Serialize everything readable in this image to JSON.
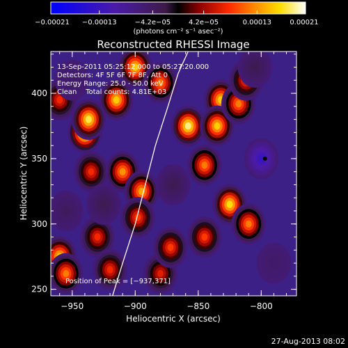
{
  "chart_data": {
    "type": "heatmap",
    "title": "Reconstructed RHESSI Image",
    "xlabel": "Heliocentric X (arcsec)",
    "ylabel": "Heliocentric Y (arcsec)",
    "xlim": [
      -967,
      -772
    ],
    "ylim": [
      245,
      432
    ],
    "x_ticks": [
      -950,
      -900,
      -850,
      -800
    ],
    "x_tick_labels": [
      "−950",
      "−900",
      "−850",
      "−800"
    ],
    "y_ticks": [
      250,
      300,
      350,
      400
    ],
    "y_tick_labels": [
      "250",
      "300",
      "350",
      "400"
    ],
    "colorbar": {
      "min": -0.00021,
      "max": 0.00021,
      "ticks": [
        -0.00021,
        -0.00013,
        -4.2e-05,
        4.2e-05,
        0.00013,
        0.00021
      ],
      "tick_labels": [
        "−0.00021",
        "−0.00013",
        "−4.2e−05",
        "4.2e−05",
        "0.00013",
        "0.00021"
      ],
      "units_label": "(photons cm⁻² s⁻¹ asec⁻²)"
    },
    "annotations": [
      "13-Sep-2011 05:25:12.000 to 05:27:20.000",
      "Detectors: 4F 5F 6F 7F 8F, Att 0",
      "Energy Range: 25.0 - 50.0 keV",
      "Clean    Total counts: 4.81E+03"
    ],
    "peak_label": "Position of Peak = [−937,371]",
    "marker": {
      "x": -797,
      "y": 350
    },
    "limb_curve": [
      [
        -918,
        245
      ],
      [
        -910,
        270
      ],
      [
        -900,
        300
      ],
      [
        -892,
        330
      ],
      [
        -884,
        360
      ],
      [
        -874,
        390
      ],
      [
        -866,
        415
      ],
      [
        -858,
        432
      ]
    ],
    "peaks": [
      {
        "x": -940,
        "y": 370,
        "value": 0.00021
      },
      {
        "x": -937,
        "y": 380,
        "value": 0.00018
      },
      {
        "x": -915,
        "y": 395,
        "value": 0.00016
      },
      {
        "x": -900,
        "y": 420,
        "value": 0.00016
      },
      {
        "x": -880,
        "y": 408,
        "value": 0.00012
      },
      {
        "x": -858,
        "y": 375,
        "value": 0.00019
      },
      {
        "x": -832,
        "y": 395,
        "value": 0.00016
      },
      {
        "x": -835,
        "y": 375,
        "value": 0.00016
      },
      {
        "x": -818,
        "y": 392,
        "value": 0.00012
      },
      {
        "x": -812,
        "y": 410,
        "value": 9e-05
      },
      {
        "x": -845,
        "y": 345,
        "value": 0.00012
      },
      {
        "x": -910,
        "y": 340,
        "value": 0.00013
      },
      {
        "x": -895,
        "y": 325,
        "value": 0.00014
      },
      {
        "x": -935,
        "y": 340,
        "value": 8e-05
      },
      {
        "x": -898,
        "y": 305,
        "value": 9e-05
      },
      {
        "x": -845,
        "y": 290,
        "value": 9e-05
      },
      {
        "x": -825,
        "y": 315,
        "value": 0.00017
      },
      {
        "x": -810,
        "y": 300,
        "value": 0.00012
      },
      {
        "x": -930,
        "y": 290,
        "value": 8e-05
      },
      {
        "x": -960,
        "y": 275,
        "value": 0.00016
      },
      {
        "x": -955,
        "y": 262,
        "value": 0.00012
      },
      {
        "x": -920,
        "y": 265,
        "value": 8e-05
      },
      {
        "x": -880,
        "y": 262,
        "value": 7e-05
      },
      {
        "x": -872,
        "y": 282,
        "value": 9e-05
      },
      {
        "x": -960,
        "y": 395,
        "value": 8e-05
      },
      {
        "x": -800,
        "y": 350,
        "value": -0.00013
      },
      {
        "x": -955,
        "y": 310,
        "value": -4e-05
      },
      {
        "x": -790,
        "y": 270,
        "value": -5e-05
      },
      {
        "x": -950,
        "y": 410,
        "value": -5e-05
      },
      {
        "x": -870,
        "y": 330,
        "value": -3e-05
      },
      {
        "x": -805,
        "y": 420,
        "value": -3e-05
      },
      {
        "x": -925,
        "y": 315,
        "value": -3e-05
      }
    ]
  },
  "footer": {
    "timestamp": "27-Aug-2013 08:02"
  }
}
